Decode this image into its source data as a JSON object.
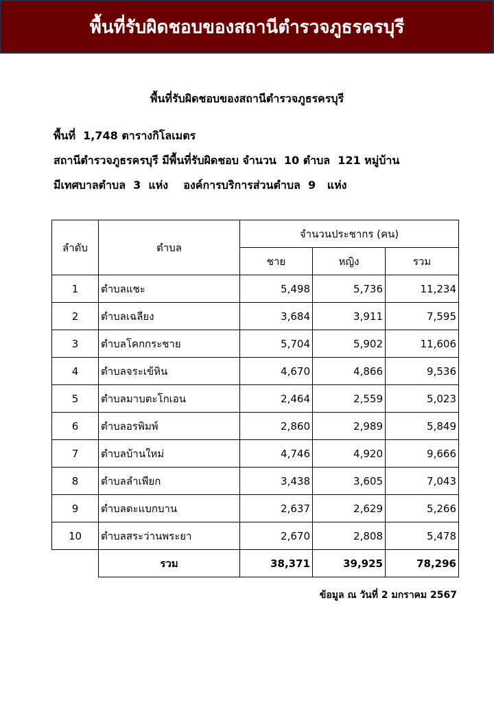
{
  "banner_title": "พื้นที่รับผิดชอบของสถานีตำรวจภูธรครบุรี",
  "subtitle": "พื้นที่รับผิดชอบของสถานีตำรวจภูธรครบุรี",
  "lines": [
    "พื้นที่  1,748 ตารางกิโลเมตร",
    "สถานีตำรวจภูธรครบุรี มีพื้นที่รับผิดชอบ จำนวน  10 ตำบล  121 หมู่บ้าน",
    "มีเทศบาลตำบล  3  แห่ง    องค์การบริการส่วนตำบล  9   แห่ง"
  ],
  "table": {
    "headers": {
      "order": "ลำดับ",
      "subdistrict": "ตำบล",
      "population": "จำนวนประชากร (คน)",
      "male": "ชาย",
      "female": "หญิง",
      "total": "รวม"
    },
    "rows": [
      [
        "1",
        "ตำบลแชะ",
        "5,498",
        "5,736",
        "11,234"
      ],
      [
        "2",
        "ตำบลเฉลียง",
        "3,684",
        "3,911",
        "7,595"
      ],
      [
        "3",
        "ตำบลโคกกระชาย",
        "5,704",
        "5,902",
        "11,606"
      ],
      [
        "4",
        "ตำบลจระเข้หิน",
        "4,670",
        "4,866",
        "9,536"
      ],
      [
        "5",
        "ตำบลมาบตะโกเอน",
        "2,464",
        "2,559",
        "5,023"
      ],
      [
        "6",
        "ตำบลอรพิมพ์",
        "2,860",
        "2,989",
        "5,849"
      ],
      [
        "7",
        "ตำบลบ้านใหม่",
        "4,746",
        "4,920",
        "9,666"
      ],
      [
        "8",
        "ตำบลลำเพียก",
        "3,438",
        "3,605",
        "7,043"
      ],
      [
        "9",
        "ตำบลตะแบกบาน",
        "2,637",
        "2,629",
        "5,266"
      ],
      [
        "10",
        "ตำบลสระว่านพระยา",
        "2,670",
        "2,808",
        "5,478"
      ]
    ],
    "total": {
      "label": "รวม",
      "male": "38,371",
      "female": "39,925",
      "total": "78,296"
    }
  },
  "note": "ข้อมูล ณ วันที่ 2 มกราคม 2567",
  "colors": {
    "banner": "#6b0000",
    "banner_border": "#1f3049"
  }
}
